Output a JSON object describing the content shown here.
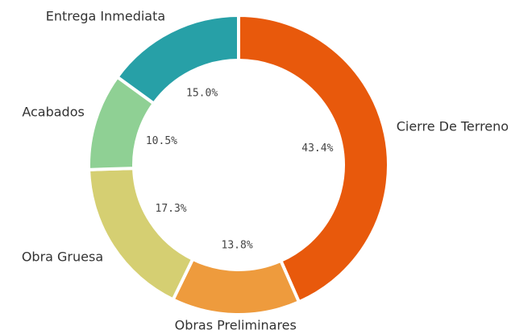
{
  "chart_data": {
    "type": "donut",
    "categories": [
      "Cierre De Terreno",
      "Obras Preliminares",
      "Obra Gruesa",
      "Acabados",
      "Entrega Inmediata"
    ],
    "values": [
      43.4,
      13.8,
      17.3,
      10.5,
      15.0
    ],
    "value_labels": [
      "43.4%",
      "13.8%",
      "17.3%",
      "10.5%",
      "15.0%"
    ],
    "colors": [
      "#e8590c",
      "#ee9b3d",
      "#d5cf72",
      "#8fd094",
      "#27a0a7"
    ]
  }
}
